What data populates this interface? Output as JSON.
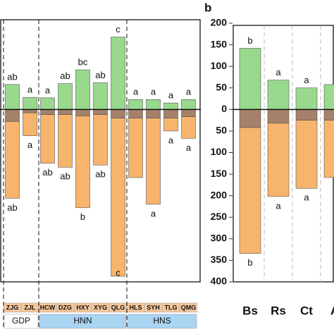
{
  "chart_data": [
    {
      "type": "stacked-bar",
      "categories": [
        "ZJG",
        "ZJL",
        "HCW",
        "DZG",
        "HXY",
        "XYG",
        "QLG",
        "HLS",
        "SYH",
        "TLG",
        "QMG"
      ],
      "groups": [
        {
          "label": "GDP",
          "size": 2
        },
        {
          "label": "HNN",
          "size": 5
        },
        {
          "label": "HNS",
          "size": 4
        }
      ],
      "series": [
        {
          "color": "#98d98e",
          "values": [
            58,
            28,
            27,
            60,
            92,
            62,
            168,
            23,
            23,
            15,
            23
          ]
        },
        {
          "color": "#a5806a",
          "values": [
            -28,
            -8,
            -12,
            -12,
            -15,
            -12,
            -20,
            -20,
            -20,
            -20,
            -17
          ]
        },
        {
          "color": "#f7b46c",
          "values": [
            -178,
            -53,
            -113,
            -122,
            -213,
            -117,
            -367,
            -138,
            -200,
            -30,
            -50
          ]
        }
      ],
      "top_labels": [
        "ab",
        "a",
        "a",
        "ab",
        "bc",
        "ab",
        "c",
        "a",
        "a",
        "a",
        "a"
      ],
      "bottom_labels": [
        "ab",
        "a",
        "ab",
        "ab",
        "b",
        "ab",
        "c",
        null,
        "a",
        "a",
        "a"
      ],
      "ylim": [
        -400,
        200
      ]
    },
    {
      "type": "stacked-bar",
      "panel_label": "b",
      "categories": [
        "Bs",
        "Rs",
        "Ct",
        "A"
      ],
      "series": [
        {
          "color": "#98d98e",
          "values": [
            142,
            68,
            50,
            58
          ]
        },
        {
          "color": "#a5806a",
          "values": [
            -42,
            -32,
            -25,
            -25
          ]
        },
        {
          "color": "#f7b46c",
          "values": [
            -292,
            -170,
            -158,
            -133
          ]
        }
      ],
      "top_labels": [
        "b",
        "a",
        "a",
        null
      ],
      "bottom_labels": [
        "b",
        "a",
        "a",
        null
      ],
      "ylim": [
        -400,
        200
      ],
      "yticks": [
        200,
        150,
        100,
        50,
        0,
        {
          "value": -50,
          "label": "50"
        },
        {
          "value": -100,
          "label": "100"
        },
        {
          "value": -150,
          "label": "150"
        },
        {
          "value": -200,
          "label": "200"
        },
        {
          "value": -250,
          "label": "250"
        },
        {
          "value": -300,
          "label": "300"
        },
        {
          "value": -350,
          "label": "350"
        },
        {
          "value": -400,
          "label": "400"
        }
      ]
    }
  ]
}
